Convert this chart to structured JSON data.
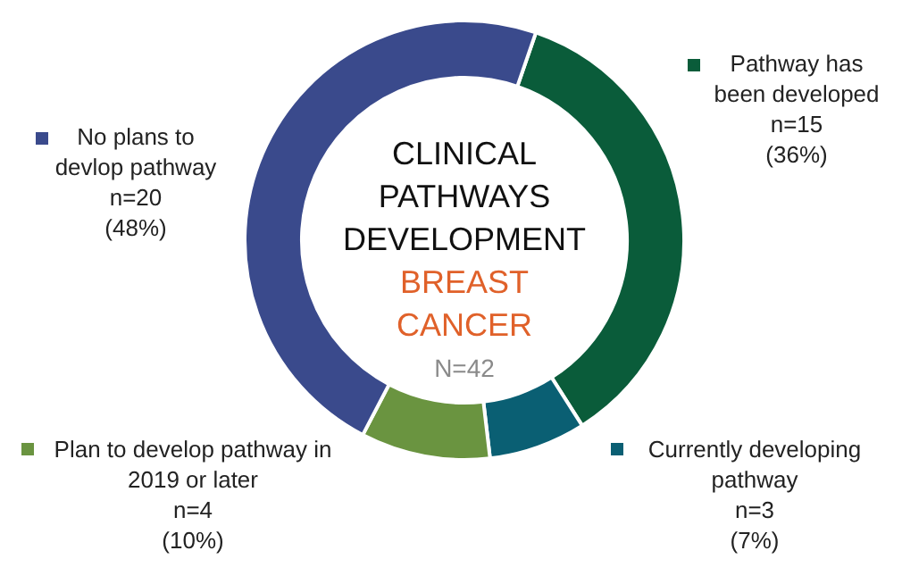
{
  "chart_data": {
    "type": "donut",
    "title": "CLINICAL PATHWAYS DEVELOPMENT",
    "subtitle": "BREAST CANCER",
    "annotations": [
      "N=42"
    ],
    "categories": [
      "Pathway has been developed",
      "Currently developing pathway",
      "Plan to develop pathway in 2019 or later",
      "No plans to devlop pathway"
    ],
    "values": [
      15,
      3,
      4,
      20
    ],
    "value_labels": [
      "n=15\n(36%)",
      "n=3\n(7%)",
      "n=4\n(10%)",
      "n=20\n(48%)"
    ],
    "colors": [
      "#0a5c3a",
      "#0a5f73",
      "#6a9440",
      "#3a4a8c"
    ],
    "legend": "right"
  }
}
